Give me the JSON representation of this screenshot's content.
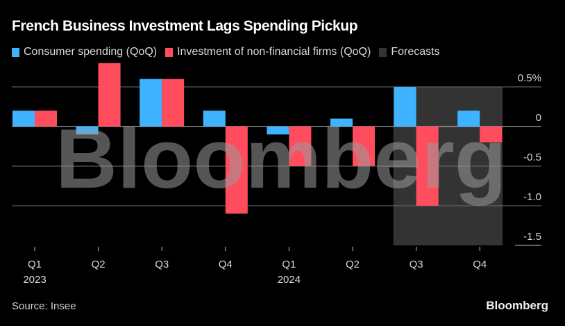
{
  "header": {
    "title": "French Business Investment Lags Spending Pickup"
  },
  "legend": [
    {
      "label": "Consumer spending (QoQ)",
      "color": "#3fb3ff"
    },
    {
      "label": "Investment of non-financial firms (QoQ)",
      "color": "#ff4d5e"
    },
    {
      "label": "Forecasts",
      "color": "#333333"
    }
  ],
  "footer": {
    "source": "Source: Insee",
    "brand": "Bloomberg"
  },
  "watermark": "Bloomberg",
  "chart_data": {
    "type": "bar",
    "title": "French Business Investment Lags Spending Pickup",
    "xlabel": "",
    "ylabel": "",
    "categories": [
      "Q1 2023",
      "Q2 2023",
      "Q3 2023",
      "Q4 2023",
      "Q1 2024",
      "Q2 2024",
      "Q3 2024",
      "Q4 2024"
    ],
    "x_tick_labels": [
      {
        "q": "Q1",
        "year": "2023"
      },
      {
        "q": "Q2",
        "year": ""
      },
      {
        "q": "Q3",
        "year": ""
      },
      {
        "q": "Q4",
        "year": ""
      },
      {
        "q": "Q1",
        "year": "2024"
      },
      {
        "q": "Q2",
        "year": ""
      },
      {
        "q": "Q3",
        "year": ""
      },
      {
        "q": "Q4",
        "year": ""
      }
    ],
    "series": [
      {
        "name": "Consumer spending (QoQ)",
        "color": "#3fb3ff",
        "values": [
          0.2,
          -0.1,
          0.6,
          0.2,
          -0.1,
          0.1,
          0.5,
          0.2
        ]
      },
      {
        "name": "Investment of non-financial firms (QoQ)",
        "color": "#ff4d5e",
        "values": [
          0.2,
          0.8,
          0.6,
          -1.1,
          -0.5,
          -0.5,
          -1.0,
          -0.2
        ]
      }
    ],
    "forecast_categories": [
      "Q3 2024",
      "Q4 2024"
    ],
    "forecast_color": "#333333",
    "ylim": [
      -1.5,
      0.5
    ],
    "y_ticks": [
      0.5,
      0,
      -0.5,
      -1.0,
      -1.5
    ],
    "y_tick_labels": [
      "0.5%",
      "0",
      "-0.5",
      "-1.0",
      "-1.5"
    ],
    "grid": true,
    "legend_position": "top-left",
    "y_axis_position": "right"
  }
}
